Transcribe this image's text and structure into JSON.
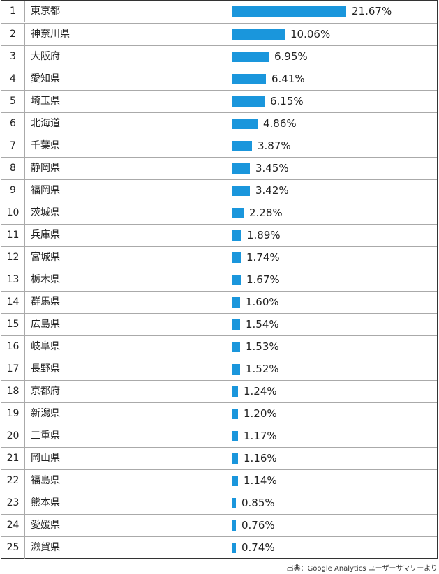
{
  "chart_data": {
    "type": "bar",
    "orientation": "horizontal",
    "ranks": [
      "1",
      "2",
      "3",
      "4",
      "5",
      "6",
      "7",
      "8",
      "9",
      "10",
      "11",
      "12",
      "13",
      "14",
      "15",
      "16",
      "17",
      "18",
      "19",
      "20",
      "21",
      "22",
      "23",
      "24",
      "25"
    ],
    "categories": [
      "東京都",
      "神奈川県",
      "大阪府",
      "愛知県",
      "埼玉県",
      "北海道",
      "千葉県",
      "静岡県",
      "福岡県",
      "茨城県",
      "兵庫県",
      "宮城県",
      "栃木県",
      "群馬県",
      "広島県",
      "岐阜県",
      "長野県",
      "京都府",
      "新潟県",
      "三重県",
      "岡山県",
      "福島県",
      "熊本県",
      "愛媛県",
      "滋賀県"
    ],
    "values": [
      21.67,
      10.06,
      6.95,
      6.41,
      6.15,
      4.86,
      3.87,
      3.45,
      3.42,
      2.28,
      1.89,
      1.74,
      1.67,
      1.6,
      1.54,
      1.53,
      1.52,
      1.24,
      1.2,
      1.17,
      1.16,
      1.14,
      0.85,
      0.76,
      0.74
    ],
    "value_labels": [
      "21.67%",
      "10.06%",
      "6.95%",
      "6.41%",
      "6.15%",
      "4.86%",
      "3.87%",
      "3.45%",
      "3.42%",
      "2.28%",
      "1.89%",
      "1.74%",
      "1.67%",
      "1.60%",
      "1.54%",
      "1.53%",
      "1.52%",
      "1.24%",
      "1.20%",
      "1.17%",
      "1.16%",
      "1.14%",
      "0.85%",
      "0.76%",
      "0.74%"
    ],
    "bar_color": "#1a96dc"
  },
  "source": "出典：Google Analytics ユーザーサマリーより"
}
